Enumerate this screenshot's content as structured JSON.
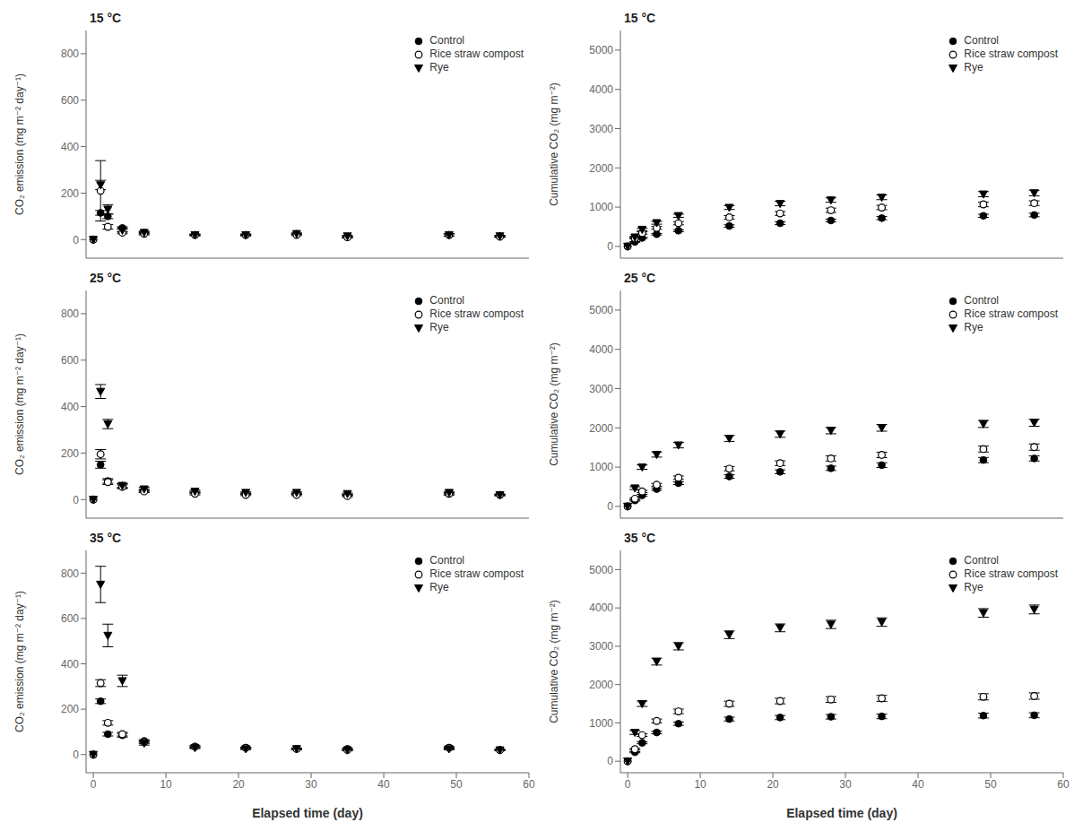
{
  "chart_data": [
    {
      "type": "scatter",
      "annotations": [
        "15 °C"
      ],
      "ylabel": "CO₂ emission (mg m⁻² day⁻¹)",
      "xlim": [
        -1,
        60
      ],
      "xticks": [
        0,
        10,
        20,
        30,
        40,
        50,
        60
      ],
      "ylim": [
        -80,
        900
      ],
      "yticks": [
        0,
        200,
        400,
        600,
        800
      ],
      "grid": false,
      "legend": "upper right",
      "tick_labels": "y",
      "series": [
        {
          "name": "Control",
          "color": "black",
          "marker": "circle",
          "x": [
            0,
            1,
            2,
            4,
            7,
            14,
            21,
            28,
            35,
            49,
            56
          ],
          "values": [
            0,
            115,
            100,
            50,
            30,
            20,
            20,
            25,
            10,
            20,
            15
          ],
          "errors": [
            0,
            10,
            10,
            5,
            5,
            3,
            3,
            3,
            3,
            5,
            3
          ]
        },
        {
          "name": "Rice straw compost",
          "color": "black",
          "marker": "circle_open",
          "x": [
            0,
            1,
            2,
            4,
            7,
            14,
            21,
            28,
            35,
            49,
            56
          ],
          "values": [
            0,
            210,
            55,
            30,
            25,
            20,
            20,
            20,
            10,
            20,
            12
          ],
          "errors": [
            0,
            130,
            10,
            5,
            5,
            3,
            3,
            3,
            3,
            5,
            3
          ]
        },
        {
          "name": "Rye",
          "color": "black",
          "marker": "triangle_down",
          "x": [
            0,
            1,
            2,
            4,
            7,
            14,
            21,
            28,
            35,
            49,
            56
          ],
          "values": [
            0,
            235,
            130,
            40,
            30,
            20,
            20,
            25,
            15,
            20,
            15
          ],
          "errors": [
            0,
            20,
            20,
            8,
            5,
            3,
            3,
            3,
            3,
            5,
            3
          ]
        }
      ]
    },
    {
      "type": "scatter",
      "annotations": [
        "15 °C"
      ],
      "ylabel": "Cumulative CO₂ (mg m⁻²)",
      "xlim": [
        -1,
        60
      ],
      "xticks": [
        0,
        10,
        20,
        30,
        40,
        50,
        60
      ],
      "ylim": [
        -300,
        5500
      ],
      "yticks": [
        0,
        1000,
        2000,
        3000,
        4000,
        5000
      ],
      "grid": false,
      "legend": "upper right",
      "tick_labels": "y",
      "series": [
        {
          "name": "Control",
          "color": "black",
          "marker": "circle",
          "x": [
            0,
            1,
            2,
            4,
            7,
            14,
            21,
            28,
            35,
            49,
            56
          ],
          "values": [
            0,
            115,
            215,
            310,
            400,
            520,
            590,
            660,
            720,
            780,
            800
          ],
          "errors": [
            0,
            10,
            15,
            20,
            25,
            30,
            35,
            35,
            40,
            40,
            45
          ]
        },
        {
          "name": "Rice straw compost",
          "color": "black",
          "marker": "circle_open",
          "x": [
            0,
            1,
            2,
            4,
            7,
            14,
            21,
            28,
            35,
            49,
            56
          ],
          "values": [
            0,
            210,
            340,
            470,
            590,
            740,
            840,
            920,
            990,
            1070,
            1100
          ],
          "errors": [
            0,
            20,
            30,
            35,
            40,
            45,
            50,
            55,
            55,
            60,
            60
          ]
        },
        {
          "name": "Rye",
          "color": "black",
          "marker": "triangle_down",
          "x": [
            0,
            1,
            2,
            4,
            7,
            14,
            21,
            28,
            35,
            49,
            56
          ],
          "values": [
            0,
            235,
            430,
            600,
            780,
            990,
            1090,
            1180,
            1250,
            1330,
            1360
          ],
          "errors": [
            0,
            20,
            30,
            35,
            40,
            50,
            55,
            55,
            60,
            65,
            70
          ]
        }
      ]
    },
    {
      "type": "scatter",
      "annotations": [
        "25 °C"
      ],
      "ylabel": "CO₂ emission (mg m⁻² day⁻¹)",
      "xlim": [
        -1,
        60
      ],
      "xticks": [
        0,
        10,
        20,
        30,
        40,
        50,
        60
      ],
      "ylim": [
        -80,
        900
      ],
      "yticks": [
        0,
        200,
        400,
        600,
        800
      ],
      "grid": false,
      "legend": "upper right",
      "tick_labels": "y",
      "series": [
        {
          "name": "Control",
          "color": "black",
          "marker": "circle",
          "x": [
            0,
            1,
            2,
            4,
            7,
            14,
            21,
            28,
            35,
            49,
            56
          ],
          "values": [
            0,
            150,
            80,
            60,
            40,
            30,
            25,
            25,
            20,
            25,
            20
          ],
          "errors": [
            0,
            15,
            10,
            8,
            5,
            5,
            3,
            3,
            3,
            5,
            3
          ]
        },
        {
          "name": "Rice straw compost",
          "color": "black",
          "marker": "circle_open",
          "x": [
            0,
            1,
            2,
            4,
            7,
            14,
            21,
            28,
            35,
            49,
            56
          ],
          "values": [
            0,
            195,
            75,
            55,
            35,
            25,
            20,
            20,
            15,
            25,
            20
          ],
          "errors": [
            0,
            20,
            10,
            8,
            5,
            5,
            3,
            3,
            3,
            5,
            3
          ]
        },
        {
          "name": "Rye",
          "color": "black",
          "marker": "triangle_down",
          "x": [
            0,
            1,
            2,
            4,
            7,
            14,
            21,
            28,
            35,
            49,
            56
          ],
          "values": [
            0,
            465,
            325,
            60,
            45,
            35,
            30,
            30,
            25,
            30,
            20
          ],
          "errors": [
            0,
            30,
            20,
            10,
            8,
            5,
            3,
            3,
            3,
            5,
            3
          ]
        }
      ]
    },
    {
      "type": "scatter",
      "annotations": [
        "25 °C"
      ],
      "ylabel": "Cumulative CO₂ (mg m⁻²)",
      "xlim": [
        -1,
        60
      ],
      "xticks": [
        0,
        10,
        20,
        30,
        40,
        50,
        60
      ],
      "ylim": [
        -300,
        5500
      ],
      "yticks": [
        0,
        1000,
        2000,
        3000,
        4000,
        5000
      ],
      "grid": false,
      "legend": "upper right",
      "tick_labels": "y",
      "series": [
        {
          "name": "Control",
          "color": "black",
          "marker": "circle",
          "x": [
            0,
            1,
            2,
            4,
            7,
            14,
            21,
            28,
            35,
            49,
            56
          ],
          "values": [
            0,
            150,
            280,
            440,
            590,
            760,
            880,
            970,
            1050,
            1180,
            1220
          ],
          "errors": [
            0,
            15,
            25,
            30,
            35,
            45,
            50,
            55,
            60,
            65,
            65
          ]
        },
        {
          "name": "Rice straw compost",
          "color": "black",
          "marker": "circle_open",
          "x": [
            0,
            1,
            2,
            4,
            7,
            14,
            21,
            28,
            35,
            49,
            56
          ],
          "values": [
            0,
            195,
            380,
            550,
            730,
            960,
            1100,
            1220,
            1310,
            1460,
            1510
          ],
          "errors": [
            0,
            20,
            30,
            35,
            45,
            55,
            60,
            65,
            70,
            75,
            80
          ]
        },
        {
          "name": "Rye",
          "color": "black",
          "marker": "triangle_down",
          "x": [
            0,
            1,
            2,
            4,
            7,
            14,
            21,
            28,
            35,
            49,
            56
          ],
          "values": [
            0,
            465,
            1000,
            1320,
            1560,
            1730,
            1840,
            1930,
            2000,
            2100,
            2130
          ],
          "errors": [
            0,
            35,
            55,
            65,
            70,
            75,
            80,
            82,
            85,
            90,
            90
          ]
        }
      ]
    },
    {
      "type": "scatter",
      "annotations": [
        "35 °C"
      ],
      "xlabel": "Elapsed time (day)",
      "ylabel": "CO₂ emission (mg m⁻² day⁻¹)",
      "xlim": [
        -1,
        60
      ],
      "xticks": [
        0,
        10,
        20,
        30,
        40,
        50,
        60
      ],
      "ylim": [
        -80,
        900
      ],
      "yticks": [
        0,
        200,
        400,
        600,
        800
      ],
      "grid": false,
      "legend": "upper right",
      "series": [
        {
          "name": "Control",
          "color": "black",
          "marker": "circle",
          "x": [
            0,
            1,
            2,
            4,
            7,
            14,
            21,
            28,
            35,
            49,
            56
          ],
          "values": [
            0,
            235,
            90,
            85,
            60,
            35,
            30,
            25,
            25,
            30,
            20
          ],
          "errors": [
            0,
            10,
            8,
            8,
            6,
            4,
            3,
            3,
            3,
            4,
            3
          ]
        },
        {
          "name": "Rice straw compost",
          "color": "black",
          "marker": "circle_open",
          "x": [
            0,
            1,
            2,
            4,
            7,
            14,
            21,
            28,
            35,
            49,
            56
          ],
          "values": [
            0,
            315,
            140,
            90,
            55,
            35,
            30,
            25,
            20,
            30,
            20
          ],
          "errors": [
            0,
            15,
            10,
            8,
            6,
            4,
            3,
            3,
            3,
            4,
            3
          ]
        },
        {
          "name": "Rye",
          "color": "black",
          "marker": "triangle_down",
          "x": [
            0,
            1,
            2,
            4,
            7,
            14,
            21,
            28,
            35,
            49,
            56
          ],
          "values": [
            0,
            750,
            525,
            325,
            50,
            30,
            25,
            25,
            20,
            25,
            20
          ],
          "errors": [
            0,
            80,
            50,
            25,
            8,
            4,
            3,
            3,
            3,
            4,
            3
          ]
        }
      ]
    },
    {
      "type": "scatter",
      "annotations": [
        "35 °C"
      ],
      "xlabel": "Elapsed time (day)",
      "ylabel": "Cumulative CO₂ (mg m⁻²)",
      "xlim": [
        -1,
        60
      ],
      "xticks": [
        0,
        10,
        20,
        30,
        40,
        50,
        60
      ],
      "ylim": [
        -300,
        5500
      ],
      "yticks": [
        0,
        1000,
        2000,
        3000,
        4000,
        5000
      ],
      "grid": false,
      "legend": "upper right",
      "series": [
        {
          "name": "Control",
          "color": "black",
          "marker": "circle",
          "x": [
            0,
            1,
            2,
            4,
            7,
            14,
            21,
            28,
            35,
            49,
            56
          ],
          "values": [
            0,
            235,
            480,
            750,
            980,
            1100,
            1140,
            1160,
            1170,
            1190,
            1200
          ],
          "errors": [
            0,
            15,
            25,
            35,
            45,
            50,
            55,
            58,
            60,
            62,
            65
          ]
        },
        {
          "name": "Rice straw compost",
          "color": "black",
          "marker": "circle_open",
          "x": [
            0,
            1,
            2,
            4,
            7,
            14,
            21,
            28,
            35,
            49,
            56
          ],
          "values": [
            0,
            315,
            680,
            1050,
            1300,
            1500,
            1570,
            1610,
            1640,
            1680,
            1700
          ],
          "errors": [
            0,
            20,
            35,
            50,
            60,
            68,
            72,
            75,
            78,
            80,
            82
          ]
        },
        {
          "name": "Rye",
          "color": "black",
          "marker": "triangle_down",
          "x": [
            0,
            1,
            2,
            4,
            7,
            14,
            21,
            28,
            35,
            49,
            56
          ],
          "values": [
            0,
            750,
            1500,
            2600,
            3000,
            3300,
            3480,
            3570,
            3630,
            3870,
            3960
          ],
          "errors": [
            0,
            50,
            70,
            90,
            95,
            100,
            102,
            108,
            110,
            112,
            115
          ]
        }
      ]
    }
  ]
}
